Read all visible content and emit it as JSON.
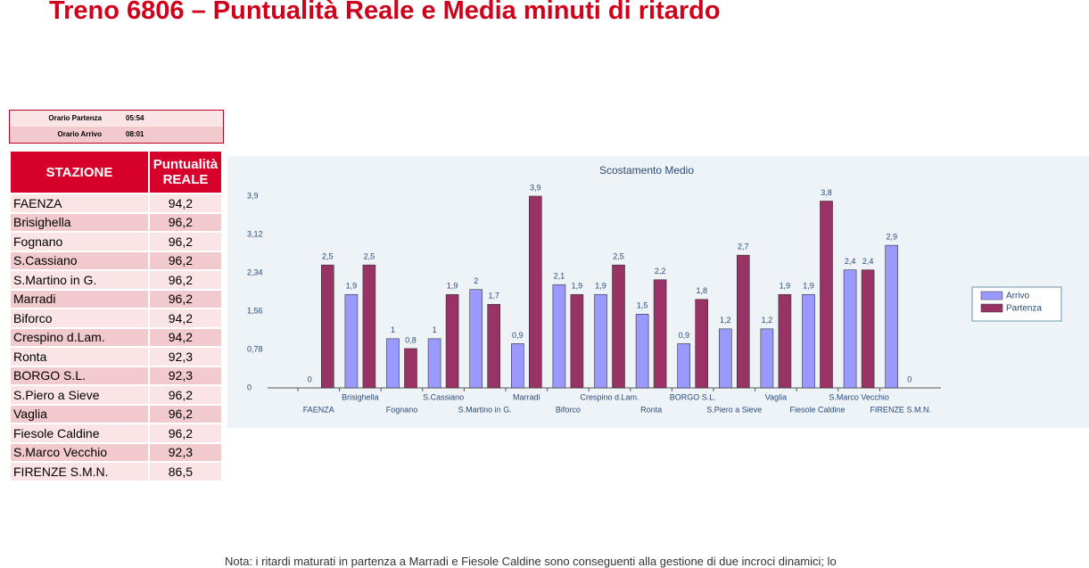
{
  "title": "Treno 6806 – Puntualità Reale e Media minuti di ritardo",
  "schedule": [
    [
      "Orario Partenza",
      "05:54"
    ],
    [
      "Orario Arrivo",
      "08:01"
    ]
  ],
  "table": {
    "header": [
      "STAZIONE",
      "Puntualità REALE"
    ],
    "rows": [
      [
        "FAENZA",
        "94,2"
      ],
      [
        "Brisighella",
        "96,2"
      ],
      [
        "Fognano",
        "96,2"
      ],
      [
        "S.Cassiano",
        "96,2"
      ],
      [
        "S.Martino in G.",
        "96,2"
      ],
      [
        "Marradi",
        "96,2"
      ],
      [
        "Biforco",
        "94,2"
      ],
      [
        "Crespino d.Lam.",
        "94,2"
      ],
      [
        "Ronta",
        "92,3"
      ],
      [
        "BORGO S.L.",
        "92,3"
      ],
      [
        "S.Piero a Sieve",
        "96,2"
      ],
      [
        "Vaglia",
        "96,2"
      ],
      [
        "Fiesole Caldine",
        "96,2"
      ],
      [
        "S.Marco Vecchio",
        "92,3"
      ],
      [
        "FIRENZE S.M.N.",
        "86,5"
      ]
    ]
  },
  "chart_data": {
    "type": "bar",
    "title": "Scostamento Medio",
    "categories": [
      "FAENZA",
      "Brisighella",
      "Fognano",
      "S.Cassiano",
      "S.Martino in G.",
      "Marradi",
      "Biforco",
      "Crespino d.Lam.",
      "Ronta",
      "BORGO S.L.",
      "S.Piero a Sieve",
      "Vaglia",
      "Fiesole Caldine",
      "S.Marco Vecchio",
      "FIRENZE S.M.N."
    ],
    "series": [
      {
        "name": "Arrivo",
        "color": "#9999ff",
        "values": [
          0,
          1.9,
          1,
          1,
          2,
          0.9,
          2.1,
          1.9,
          1.5,
          0.9,
          1.2,
          1.2,
          1.9,
          2.4,
          2.9
        ],
        "value_labels": [
          "0",
          "1,9",
          "1",
          "1",
          "2",
          "0,9",
          "2,1",
          "1,9",
          "1,5",
          "0,9",
          "1,2",
          "1,2",
          "1,9",
          "2,4",
          "2,9"
        ]
      },
      {
        "name": "Partenza",
        "color": "#993366",
        "values": [
          2.5,
          2.5,
          0.8,
          1.9,
          1.7,
          3.9,
          1.9,
          2.5,
          2.2,
          1.8,
          2.7,
          1.9,
          3.8,
          2.4,
          0
        ],
        "value_labels": [
          "2,5",
          "2,5",
          "0,8",
          "1,9",
          "1,7",
          "3,9",
          "1,9",
          "2,5",
          "2,2",
          "1,8",
          "2,7",
          "1,9",
          "3,8",
          "2,4",
          "0"
        ]
      }
    ],
    "ylim": [
      0,
      3.9
    ],
    "yticks": [
      0,
      {
        "value": 0.78,
        "label": "0,78"
      },
      {
        "value": 1.56,
        "label": "1,56"
      },
      {
        "value": 2.34,
        "label": "2,34"
      },
      {
        "value": 3.12,
        "label": "3,12"
      },
      {
        "value": 3.9,
        "label": "3,9"
      }
    ],
    "grid": false,
    "legend": "right"
  },
  "note": "Nota: i ritardi maturati in partenza a Marradi e Fiesole Caldine sono conseguenti alla gestione di due incroci dinamici; lo"
}
